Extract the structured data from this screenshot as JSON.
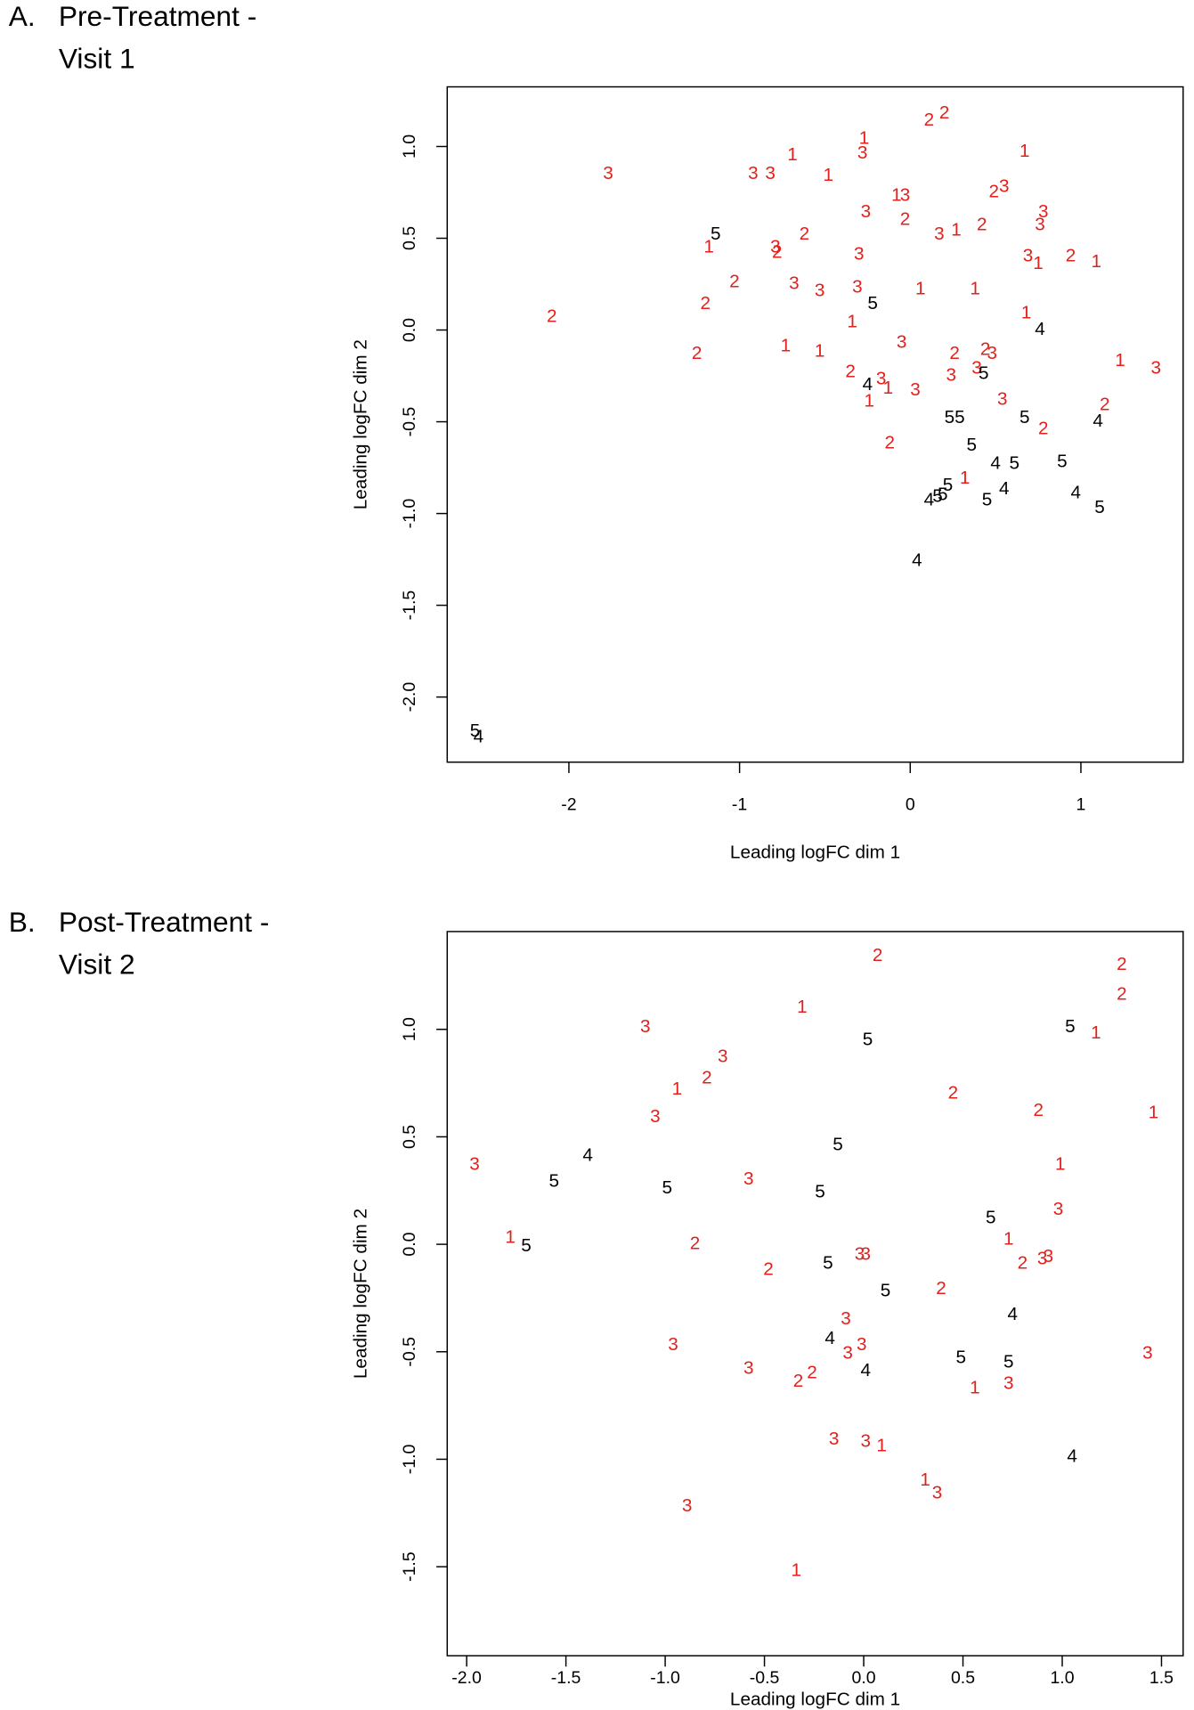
{
  "chart_data": [
    {
      "type": "scatter",
      "panel_label": "A.",
      "title": [
        "Pre-Treatment -",
        "Visit 1"
      ],
      "xlabel": "Leading logFC dim 1",
      "ylabel": "Leading logFC dim 2",
      "xlim": [
        -2.713,
        1.599
      ],
      "ylim": [
        -2.355,
        1.325
      ],
      "xticks": [
        -2,
        -1,
        0,
        1
      ],
      "yticks": [
        {
          "value": -2,
          "label": "-2.0"
        },
        -1.5,
        {
          "value": -1,
          "label": "-1.0"
        },
        -0.5,
        {
          "value": 0,
          "label": "0.0"
        },
        0.5,
        {
          "value": 1,
          "label": "1.0"
        }
      ],
      "series": [
        {
          "name": "1",
          "color": "#e3201b",
          "x": [
            -1.18,
            -0.69,
            -0.27,
            0.67,
            -0.48,
            -0.08,
            0.27,
            0.75,
            1.09,
            0.06,
            0.38,
            -0.34,
            0.68,
            -0.73,
            -0.53,
            1.23,
            -0.13,
            -0.24,
            0.32
          ],
          "values": [
            0.45,
            0.95,
            1.04,
            0.97,
            0.84,
            0.73,
            0.54,
            0.36,
            0.37,
            0.22,
            0.22,
            0.04,
            0.09,
            -0.09,
            -0.12,
            -0.17,
            -0.32,
            -0.39,
            -0.81
          ]
        },
        {
          "name": "2",
          "color": "#e3201b",
          "x": [
            0.11,
            0.2,
            -0.03,
            0.49,
            0.42,
            -0.78,
            -0.62,
            0.94,
            -1.03,
            -1.2,
            -2.1,
            -1.25,
            0.26,
            0.44,
            -0.35,
            1.14,
            0.78,
            -0.12
          ],
          "values": [
            1.14,
            1.18,
            0.6,
            0.75,
            0.57,
            0.42,
            0.52,
            0.4,
            0.26,
            0.14,
            0.07,
            -0.13,
            -0.13,
            -0.11,
            -0.23,
            -0.41,
            -0.54,
            -0.62
          ]
        },
        {
          "name": "3",
          "color": "#e3201b",
          "x": [
            -1.77,
            -0.92,
            -0.82,
            -0.28,
            -0.03,
            -0.26,
            0.55,
            0.78,
            0.76,
            0.17,
            -0.79,
            -0.3,
            0.69,
            -0.68,
            -0.53,
            -0.31,
            -0.05,
            0.48,
            0.39,
            1.44,
            0.24,
            -0.17,
            0.03,
            0.54
          ],
          "values": [
            0.85,
            0.85,
            0.85,
            0.96,
            0.73,
            0.64,
            0.78,
            0.64,
            0.57,
            0.52,
            0.45,
            0.41,
            0.4,
            0.25,
            0.21,
            0.23,
            -0.07,
            -0.13,
            -0.21,
            -0.21,
            -0.25,
            -0.27,
            -0.33,
            -0.38
          ]
        },
        {
          "name": "4",
          "color": "#000000",
          "x": [
            0.76,
            -0.25,
            1.1,
            0.5,
            0.11,
            0.55,
            0.97,
            0.04,
            -2.53
          ],
          "values": [
            0.0,
            -0.3,
            -0.5,
            -0.73,
            -0.93,
            -0.87,
            -0.89,
            -1.26,
            -2.22
          ]
        },
        {
          "name": "5",
          "color": "#000000",
          "x": [
            -1.14,
            -0.22,
            0.43,
            0.23,
            0.29,
            0.67,
            0.36,
            0.61,
            0.89,
            0.22,
            0.19,
            0.16,
            0.45,
            1.11,
            -2.55
          ],
          "values": [
            0.52,
            0.14,
            -0.24,
            -0.48,
            -0.48,
            -0.48,
            -0.63,
            -0.73,
            -0.72,
            -0.85,
            -0.9,
            -0.91,
            -0.93,
            -0.97,
            -2.19
          ]
        }
      ]
    },
    {
      "type": "scatter",
      "panel_label": "B.",
      "title": [
        "Post-Treatment -",
        "Visit 2"
      ],
      "xlabel": "Leading logFC dim 1",
      "ylabel": "Leading logFC dim 2",
      "xlim": [
        -2.098,
        1.609
      ],
      "ylim": [
        -1.914,
        1.455
      ],
      "xticks": [
        {
          "value": -2,
          "label": "-2.0"
        },
        -1.5,
        {
          "value": -1,
          "label": "-1.0"
        },
        -0.5,
        {
          "value": 0,
          "label": "0.0"
        },
        0.5,
        {
          "value": 1,
          "label": "1.0"
        },
        1.5
      ],
      "yticks": [
        -1.5,
        {
          "value": -1,
          "label": "-1.0"
        },
        -0.5,
        {
          "value": 0,
          "label": "0.0"
        },
        0.5,
        {
          "value": 1,
          "label": "1.0"
        }
      ],
      "series": [
        {
          "name": "1",
          "color": "#e3201b",
          "x": [
            -0.31,
            1.17,
            -0.94,
            1.46,
            0.99,
            -1.78,
            0.73,
            0.56,
            0.09,
            0.31,
            -0.34
          ],
          "values": [
            1.1,
            0.98,
            0.72,
            0.61,
            0.37,
            0.03,
            0.02,
            -0.67,
            -0.94,
            -1.1,
            -1.52
          ]
        },
        {
          "name": "2",
          "color": "#e3201b",
          "x": [
            0.07,
            1.3,
            1.3,
            -0.79,
            0.45,
            0.88,
            -0.85,
            0.8,
            -0.48,
            0.39,
            -0.26,
            -0.33
          ],
          "values": [
            1.34,
            1.3,
            1.16,
            0.77,
            0.7,
            0.62,
            0.0,
            -0.09,
            -0.12,
            -0.21,
            -0.6,
            -0.64
          ]
        },
        {
          "name": "3",
          "color": "#e3201b",
          "x": [
            -1.1,
            -0.71,
            -1.05,
            -1.96,
            -0.58,
            0.98,
            -0.02,
            0.01,
            0.9,
            0.93,
            -0.09,
            -0.96,
            -0.08,
            -0.01,
            1.43,
            -0.58,
            0.73,
            -0.15,
            0.01,
            0.37,
            -0.89
          ],
          "values": [
            1.01,
            0.87,
            0.59,
            0.37,
            0.3,
            0.16,
            -0.05,
            -0.05,
            -0.07,
            -0.06,
            -0.35,
            -0.47,
            -0.51,
            -0.47,
            -0.51,
            -0.58,
            -0.65,
            -0.91,
            -0.92,
            -1.16,
            -1.22
          ]
        },
        {
          "name": "4",
          "color": "#000000",
          "x": [
            -1.39,
            0.75,
            -0.17,
            0.01,
            1.05
          ],
          "values": [
            0.41,
            -0.33,
            -0.44,
            -0.59,
            -0.99
          ]
        },
        {
          "name": "5",
          "color": "#000000",
          "x": [
            0.02,
            1.04,
            -0.13,
            -1.56,
            -0.99,
            -0.22,
            0.64,
            -1.7,
            -0.18,
            0.11,
            0.49,
            0.73
          ],
          "values": [
            0.95,
            1.01,
            0.46,
            0.29,
            0.26,
            0.24,
            0.12,
            -0.01,
            -0.09,
            -0.22,
            -0.53,
            -0.55
          ]
        }
      ]
    }
  ]
}
